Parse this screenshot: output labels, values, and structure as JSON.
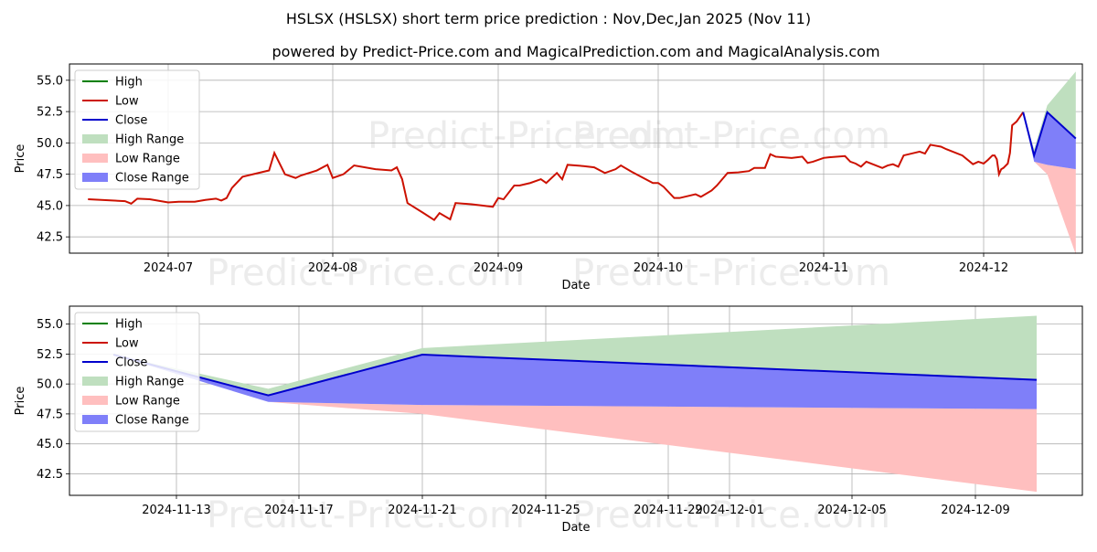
{
  "title": "HSLSX (HSLSX) short term price prediction : Nov,Dec,Jan 2025 (Nov 11)",
  "subtitle": "powered by Predict-Price.com and MagicalPrediction.com and MagicalAnalysis.com",
  "watermark": "Predict-Price.com",
  "colors": {
    "high": "#008000",
    "low": "#cc1100",
    "close": "#0000cc",
    "high_range": "#bfdfbf",
    "low_range": "#ffbfbf",
    "close_range": "#7f7ff9",
    "grid": "#b0b0b0"
  },
  "chart_data": [
    {
      "type": "line",
      "xlabel": "Date",
      "ylabel": "Price",
      "ylim": [
        41.2,
        56.3
      ],
      "grid": true,
      "legend_position": "top-left",
      "legend": [
        "High",
        "Low",
        "Close",
        "High Range",
        "Low Range",
        "Close Range"
      ],
      "x_ticks": [
        "2024-07",
        "2024-08",
        "2024-09",
        "2024-10",
        "2024-11",
        "2024-12"
      ],
      "y_ticks": [
        "42.5",
        "45.0",
        "47.5",
        "50.0",
        "52.5",
        "55.0"
      ],
      "history_low": [
        [
          "2024-06-18",
          45.5
        ],
        [
          "2024-06-24",
          45.35
        ],
        [
          "2024-06-25",
          45.15
        ],
        [
          "2024-06-26",
          45.55
        ],
        [
          "2024-06-28",
          45.5
        ],
        [
          "2024-07-01",
          45.25
        ],
        [
          "2024-07-03",
          45.3
        ],
        [
          "2024-07-06",
          45.3
        ],
        [
          "2024-07-08",
          45.45
        ],
        [
          "2024-07-10",
          45.55
        ],
        [
          "2024-07-11",
          45.4
        ],
        [
          "2024-07-12",
          45.6
        ],
        [
          "2024-07-13",
          46.4
        ],
        [
          "2024-07-15",
          47.3
        ],
        [
          "2024-07-18",
          47.6
        ],
        [
          "2024-07-20",
          47.8
        ],
        [
          "2024-07-21",
          49.2
        ],
        [
          "2024-07-23",
          47.5
        ],
        [
          "2024-07-25",
          47.2
        ],
        [
          "2024-07-26",
          47.4
        ],
        [
          "2024-07-29",
          47.8
        ],
        [
          "2024-07-31",
          48.25
        ],
        [
          "2024-08-01",
          47.2
        ],
        [
          "2024-08-03",
          47.5
        ],
        [
          "2024-08-05",
          48.2
        ],
        [
          "2024-08-09",
          47.9
        ],
        [
          "2024-08-12",
          47.8
        ],
        [
          "2024-08-13",
          48.05
        ],
        [
          "2024-08-14",
          47.1
        ],
        [
          "2024-08-15",
          45.2
        ],
        [
          "2024-08-18",
          44.4
        ],
        [
          "2024-08-20",
          43.85
        ],
        [
          "2024-08-21",
          44.4
        ],
        [
          "2024-08-23",
          43.9
        ],
        [
          "2024-08-24",
          45.2
        ],
        [
          "2024-08-27",
          45.1
        ],
        [
          "2024-08-31",
          44.9
        ],
        [
          "2024-09-01",
          45.6
        ],
        [
          "2024-09-02",
          45.5
        ],
        [
          "2024-09-04",
          46.6
        ],
        [
          "2024-09-05",
          46.6
        ],
        [
          "2024-09-07",
          46.8
        ],
        [
          "2024-09-09",
          47.1
        ],
        [
          "2024-09-10",
          46.8
        ],
        [
          "2024-09-12",
          47.6
        ],
        [
          "2024-09-13",
          47.1
        ],
        [
          "2024-09-14",
          48.25
        ],
        [
          "2024-09-17",
          48.15
        ],
        [
          "2024-09-19",
          48.05
        ],
        [
          "2024-09-21",
          47.6
        ],
        [
          "2024-09-23",
          47.9
        ],
        [
          "2024-09-24",
          48.2
        ],
        [
          "2024-09-26",
          47.7
        ],
        [
          "2024-09-30",
          46.8
        ],
        [
          "2024-10-01",
          46.8
        ],
        [
          "2024-10-02",
          46.5
        ],
        [
          "2024-10-04",
          45.6
        ],
        [
          "2024-10-05",
          45.6
        ],
        [
          "2024-10-08",
          45.9
        ],
        [
          "2024-10-09",
          45.7
        ],
        [
          "2024-10-11",
          46.2
        ],
        [
          "2024-10-12",
          46.6
        ],
        [
          "2024-10-14",
          47.6
        ],
        [
          "2024-10-16",
          47.65
        ],
        [
          "2024-10-18",
          47.75
        ],
        [
          "2024-10-19",
          48.0
        ],
        [
          "2024-10-21",
          48.0
        ],
        [
          "2024-10-22",
          49.1
        ],
        [
          "2024-10-23",
          48.9
        ],
        [
          "2024-10-26",
          48.8
        ],
        [
          "2024-10-28",
          48.9
        ],
        [
          "2024-10-29",
          48.4
        ],
        [
          "2024-10-30",
          48.5
        ],
        [
          "2024-11-01",
          48.8
        ],
        [
          "2024-11-02",
          48.85
        ],
        [
          "2024-11-05",
          48.95
        ],
        [
          "2024-11-06",
          48.5
        ],
        [
          "2024-11-07",
          48.35
        ],
        [
          "2024-11-08",
          48.1
        ],
        [
          "2024-11-09",
          48.5
        ],
        [
          "2024-11-12",
          48.0
        ],
        [
          "2024-11-13",
          48.2
        ],
        [
          "2024-11-14",
          48.3
        ],
        [
          "2024-11-15",
          48.1
        ],
        [
          "2024-11-16",
          49.0
        ],
        [
          "2024-11-18",
          49.2
        ],
        [
          "2024-11-19",
          49.3
        ],
        [
          "2024-11-20",
          49.15
        ],
        [
          "2024-11-21",
          49.85
        ],
        [
          "2024-11-23",
          49.7
        ],
        [
          "2024-11-24",
          49.5
        ],
        [
          "2024-11-27",
          49.0
        ],
        [
          "2024-11-29",
          48.3
        ],
        [
          "2024-11-30",
          48.5
        ],
        [
          "2024-12-01",
          48.35
        ],
        [
          "2024-12-03",
          48.65
        ],
        [
          "2024-12-05",
          49.0
        ],
        [
          "2024-12-06",
          49.0
        ],
        [
          "2024-12-07",
          48.7
        ],
        [
          "2024-12-08",
          47.5
        ],
        [
          "2024-12-09",
          47.9
        ],
        [
          "2024-12-10",
          48.0
        ],
        [
          "2024-12-12",
          48.35
        ],
        [
          "2024-12-13",
          49.2
        ],
        [
          "2024-12-14",
          51.4
        ],
        [
          "2024-12-16",
          51.7
        ],
        [
          "2024-12-19",
          52.45
        ]
      ],
      "forecast": {
        "x": [
          "2024-12-19",
          "2024-12-24",
          "2024-12-30",
          "2025-01-12"
        ],
        "close": [
          52.45,
          49.0,
          52.45,
          50.35
        ],
        "high": [
          52.45,
          49.5,
          53.0,
          55.7
        ],
        "low": [
          52.45,
          48.5,
          47.5,
          41.1
        ],
        "close_band_low": [
          52.45,
          48.5,
          48.25,
          47.9
        ]
      }
    },
    {
      "type": "line",
      "xlabel": "Date",
      "ylabel": "Price",
      "ylim": [
        40.7,
        56.5
      ],
      "grid": true,
      "legend_position": "top-left",
      "legend": [
        "High",
        "Low",
        "Close",
        "High Range",
        "Low Range",
        "Close Range"
      ],
      "x_ticks": [
        "2024-11-13",
        "2024-11-17",
        "2024-11-21",
        "2024-11-25",
        "2024-11-29",
        "2024-12-01",
        "2024-12-05",
        "2024-12-09"
      ],
      "y_ticks": [
        "42.5",
        "45.0",
        "47.5",
        "50.0",
        "52.5",
        "55.0"
      ],
      "forecast": {
        "x": [
          "2024-11-11",
          "2024-11-16",
          "2024-11-21",
          "2024-12-11"
        ],
        "close": [
          52.45,
          49.05,
          52.45,
          50.35
        ],
        "high": [
          52.45,
          49.6,
          53.0,
          55.7
        ],
        "low": [
          52.45,
          48.5,
          47.5,
          41.0
        ],
        "close_band_low": [
          52.45,
          48.5,
          48.25,
          47.9
        ]
      }
    }
  ]
}
